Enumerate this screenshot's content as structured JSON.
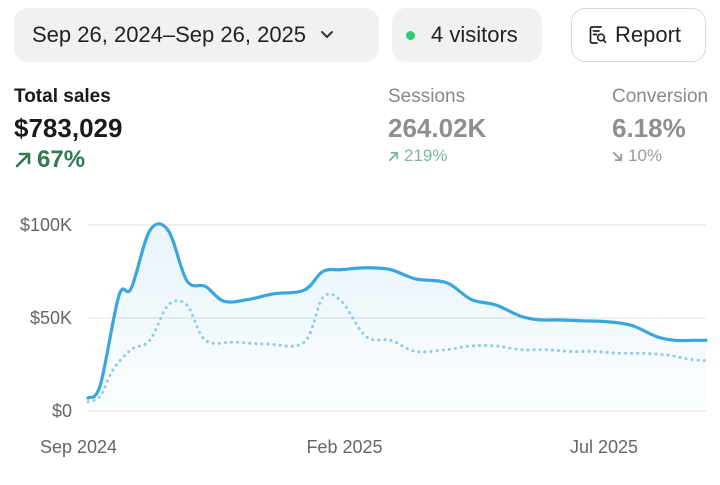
{
  "toolbar": {
    "date_range_label": "Sep 26, 2024–Sep 26, 2025",
    "visitors_label": "4 visitors",
    "report_label": "Report"
  },
  "metrics": {
    "total_sales": {
      "label": "Total sales",
      "value": "$783,029",
      "change": "67%",
      "trend": "up",
      "color": "#2f7a4f"
    },
    "sessions": {
      "label": "Sessions",
      "value": "264.02K",
      "change": "219%",
      "trend": "up"
    },
    "conversion": {
      "label": "Conversion",
      "value": "6.18%",
      "change": "10%",
      "trend": "down"
    }
  },
  "colors": {
    "primary_line": "#3aa6dc",
    "comparison_line": "#8fcbe8",
    "live_dot": "#2ecc71"
  },
  "chart_data": {
    "type": "line",
    "x_tick_labels": [
      "Sep 2024",
      "Feb 2025",
      "Jul 2025"
    ],
    "y_tick_labels": [
      "$0",
      "$50K",
      "$100K"
    ],
    "y_ticks": [
      0,
      50000,
      100000
    ],
    "ylim": [
      0,
      100000
    ],
    "xlim": [
      0,
      100
    ],
    "grid": true,
    "series": [
      {
        "style": "solid",
        "x": [
          0,
          2,
          5,
          7,
          10,
          13,
          16,
          19,
          22,
          26,
          30,
          35,
          38,
          41,
          45,
          49,
          53,
          58,
          62,
          66,
          70,
          73,
          76,
          80,
          84,
          88,
          92,
          95,
          98,
          100
        ],
        "values": [
          7000,
          14000,
          62000,
          66000,
          97000,
          97000,
          70000,
          67000,
          59000,
          60000,
          63000,
          65000,
          75000,
          76000,
          77000,
          76000,
          71000,
          69000,
          60000,
          57000,
          51000,
          49000,
          49000,
          48500,
          48000,
          46000,
          40000,
          38000,
          38000,
          38000
        ]
      },
      {
        "style": "dotted",
        "x": [
          0,
          2,
          4,
          7,
          10,
          13,
          16,
          19,
          24,
          29,
          35,
          38,
          41,
          45,
          49,
          53,
          58,
          62,
          66,
          70,
          74,
          78,
          82,
          86,
          90,
          94,
          97,
          100
        ],
        "values": [
          5000,
          8000,
          22000,
          33000,
          38000,
          57000,
          57000,
          38000,
          37000,
          36000,
          37000,
          61000,
          59000,
          40000,
          38000,
          32000,
          33000,
          35000,
          35000,
          33000,
          33000,
          32000,
          32000,
          31000,
          31000,
          30000,
          28000,
          27000
        ]
      }
    ]
  }
}
